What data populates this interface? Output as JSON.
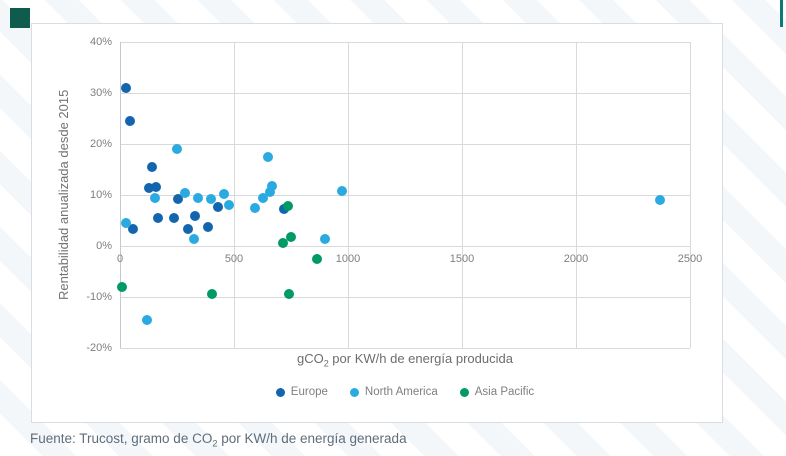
{
  "brand": {
    "logo_color": "#0f5c4e",
    "accent_line_color": "#0c7a76",
    "stripe_color": "#f3f7fa"
  },
  "chart_data": {
    "type": "scatter",
    "title": "",
    "ylabel": "Rentabilidad anualizada desde 2015",
    "xlabel_pre": "gCO",
    "xlabel_sub": "2",
    "xlabel_post": " por KW/h de energía producida",
    "xlim": [
      0,
      2500
    ],
    "ylim": [
      -20,
      40
    ],
    "x_ticks": [
      "0",
      "500",
      "1000",
      "1500",
      "2000",
      "2500"
    ],
    "y_ticks": [
      "40%",
      "30%",
      "20%",
      "10%",
      "0%",
      "-10%",
      "-20%"
    ],
    "grid": true,
    "legend_position": "bottom",
    "gridline_color": "#d9d9d9",
    "series": [
      {
        "name": "Europe",
        "color": "#1366ad",
        "points": [
          [
            25,
            31
          ],
          [
            45,
            24.5
          ],
          [
            140,
            15.5
          ],
          [
            125,
            11.3
          ],
          [
            160,
            11.5
          ],
          [
            255,
            9.3
          ],
          [
            430,
            7.7
          ],
          [
            720,
            7.3
          ],
          [
            165,
            5.4
          ],
          [
            235,
            5.5
          ],
          [
            330,
            5.8
          ],
          [
            55,
            3.4
          ],
          [
            300,
            3.4
          ],
          [
            385,
            3.7
          ]
        ]
      },
      {
        "name": "North America",
        "color": "#2aaae1",
        "points": [
          [
            250,
            19
          ],
          [
            650,
            17.5
          ],
          [
            665,
            11.8
          ],
          [
            975,
            10.8
          ],
          [
            660,
            10.5
          ],
          [
            285,
            10.3
          ],
          [
            455,
            10.2
          ],
          [
            155,
            9.5
          ],
          [
            340,
            9.5
          ],
          [
            625,
            9.4
          ],
          [
            400,
            9.2
          ],
          [
            2370,
            9
          ],
          [
            480,
            8.1
          ],
          [
            590,
            7.5
          ],
          [
            25,
            4.5
          ],
          [
            900,
            1.4
          ],
          [
            325,
            1.3
          ],
          [
            120,
            -14.5
          ]
        ]
      },
      {
        "name": "Asia Pacific",
        "color": "#009a64",
        "points": [
          [
            738,
            7.8
          ],
          [
            750,
            1.8
          ],
          [
            715,
            0.5
          ],
          [
            865,
            -2.6
          ],
          [
            10,
            -8
          ],
          [
            405,
            -9.5
          ],
          [
            740,
            -9.4
          ]
        ]
      }
    ]
  },
  "footer": {
    "pre": "Fuente: Trucost, gramo de CO",
    "sub": "2",
    "post": " por KW/h de energía generada"
  }
}
